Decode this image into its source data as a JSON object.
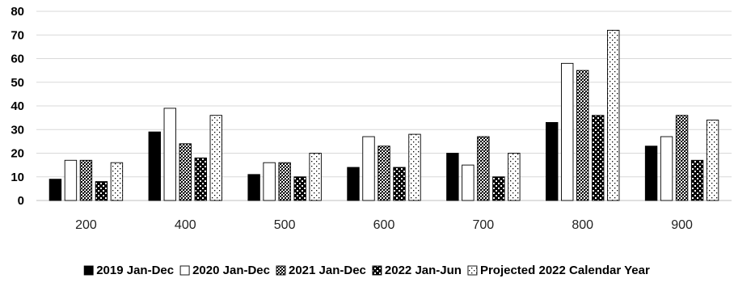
{
  "chart_data": {
    "type": "bar",
    "categories": [
      "200",
      "400",
      "500",
      "600",
      "700",
      "800",
      "900"
    ],
    "series": [
      {
        "name": "2019 Jan-Dec",
        "values": [
          9,
          29,
          11,
          14,
          20,
          33,
          23
        ],
        "pattern": "solid-black"
      },
      {
        "name": "2020 Jan-Dec",
        "values": [
          17,
          39,
          16,
          27,
          15,
          58,
          27
        ],
        "pattern": "white"
      },
      {
        "name": "2021 Jan-Dec",
        "values": [
          17,
          24,
          16,
          23,
          27,
          55,
          36
        ],
        "pattern": "crosshatch"
      },
      {
        "name": "2022 Jan-Jun",
        "values": [
          8,
          18,
          10,
          14,
          10,
          36,
          17
        ],
        "pattern": "dense-check"
      },
      {
        "name": "Projected 2022 Calendar Year",
        "values": [
          16,
          36,
          20,
          28,
          20,
          72,
          34
        ],
        "pattern": "sparse-dots"
      }
    ],
    "ylim": [
      0,
      80
    ],
    "yticks": [
      0,
      10,
      20,
      30,
      40,
      50,
      60,
      70,
      80
    ],
    "grid": true,
    "legend_position": "bottom",
    "colors": {
      "stroke": "#000000",
      "grid": "#d9d9d9",
      "fill_dark": "#000000",
      "fill_light": "#ffffff"
    }
  }
}
